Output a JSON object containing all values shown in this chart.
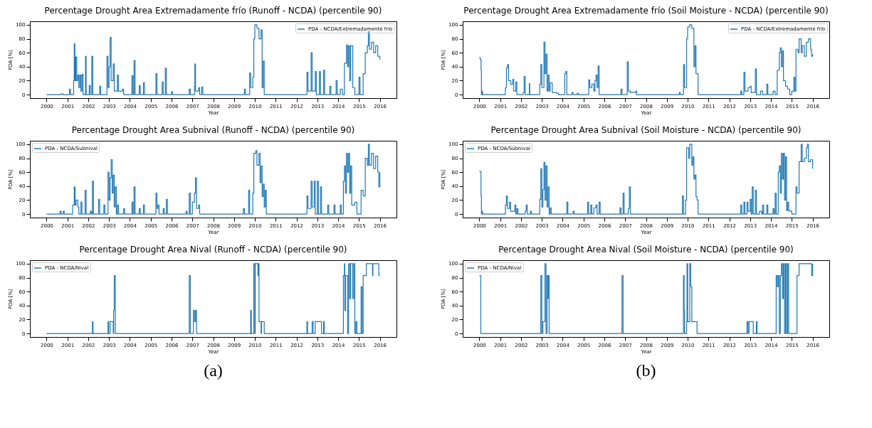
{
  "chart_data": [
    {
      "type": "step",
      "title": "Percentage Drought Area Extremadamente frío (Runoff - NCDA) (percentile 90)",
      "xlabel": "Year",
      "ylabel": "PDA [%]",
      "xlim": [
        1999.2,
        2016.8
      ],
      "xticks": [
        2000,
        2001,
        2002,
        2003,
        2004,
        2005,
        2006,
        2007,
        2008,
        2009,
        2010,
        2011,
        2012,
        2013,
        2014,
        2015,
        2016
      ],
      "ylim": [
        -5,
        105
      ],
      "yticks": [
        0,
        20,
        40,
        60,
        80,
        100
      ],
      "grid": false,
      "legend": "top right",
      "series": [
        {
          "name": "PDA - NCDA/Extremadamente frío",
          "color": "#1f77b4",
          "x": [
            2000,
            2000.7,
            2000.8,
            2001.1,
            2001.15,
            2001.3,
            2001.33,
            2001.36,
            2001.4,
            2001.45,
            2001.5,
            2001.55,
            2001.6,
            2001.65,
            2001.7,
            2001.75,
            2001.87,
            2001.9,
            2002.05,
            2002.1,
            2002.17,
            2002.22,
            2002.55,
            2002.6,
            2002.9,
            2002.95,
            2003.0,
            2003.05,
            2003.1,
            2003.2,
            2003.25,
            2003.4,
            2003.45,
            2003.65,
            2003.7,
            2004.1,
            2004.15,
            2004.2,
            2004.25,
            2004.45,
            2004.5,
            2004.65,
            2004.7,
            2005.25,
            2005.3,
            2005.55,
            2005.6,
            2005.7,
            2005.75,
            2006.0,
            2006.05,
            2006.85,
            2006.9,
            2007.1,
            2007.12,
            2007.15,
            2007.3,
            2007.35,
            2007.45,
            2007.5,
            2009.5,
            2009.55,
            2009.75,
            2009.8,
            2009.9,
            2009.95,
            2010.0,
            2010.1,
            2010.2,
            2010.3,
            2010.35,
            2010.4,
            2010.45,
            2012.45,
            2012.5,
            2012.55,
            2012.7,
            2012.75,
            2012.9,
            2012.95,
            2013.1,
            2013.15,
            2013.3,
            2013.35,
            2013.6,
            2013.65,
            2013.9,
            2013.95,
            2014.1,
            2014.2,
            2014.3,
            2014.4,
            2014.45,
            2014.5,
            2014.55,
            2014.6,
            2014.7,
            2014.8,
            2015.0,
            2015.05,
            2015.2,
            2015.3,
            2015.4,
            2015.45,
            2015.5,
            2015.6,
            2015.7,
            2015.8,
            2015.9,
            2016.0
          ],
          "values": [
            0,
            1,
            0,
            8,
            0,
            20,
            73,
            20,
            54,
            20,
            28,
            10,
            28,
            5,
            29,
            0,
            55,
            0,
            13,
            0,
            55,
            0,
            12,
            0,
            55,
            10,
            40,
            82,
            20,
            44,
            5,
            28,
            5,
            8,
            0,
            27,
            0,
            49,
            0,
            13,
            0,
            17,
            0,
            30,
            0,
            18,
            0,
            38,
            0,
            4,
            0,
            8,
            0,
            12,
            44,
            5,
            10,
            0,
            11,
            0,
            8,
            0,
            31,
            10,
            25,
            80,
            100,
            95,
            80,
            93,
            10,
            48,
            0,
            0,
            32,
            5,
            60,
            5,
            33,
            0,
            33,
            0,
            35,
            0,
            12,
            0,
            20,
            0,
            8,
            0,
            45,
            71,
            40,
            70,
            20,
            70,
            10,
            0,
            25,
            0,
            30,
            60,
            70,
            90,
            65,
            75,
            60,
            70,
            55,
            50
          ]
        }
      ]
    },
    {
      "type": "step",
      "title": "Percentage Drought Area Extremadamente frío (Soil Moisture - NCDA) (percentile 90)",
      "xlabel": "Year",
      "ylabel": "PDA [%]",
      "xlim": [
        1999.2,
        2016.8
      ],
      "xticks": [
        2000,
        2001,
        2002,
        2003,
        2004,
        2005,
        2006,
        2007,
        2008,
        2009,
        2010,
        2011,
        2012,
        2013,
        2014,
        2015,
        2016
      ],
      "ylim": [
        -5,
        105
      ],
      "yticks": [
        0,
        20,
        40,
        60,
        80,
        100
      ],
      "grid": false,
      "legend": "top right",
      "series": [
        {
          "name": "PDA - NCDA/Extremadamente frío",
          "color": "#1f77b4",
          "x": [
            2000,
            2000.05,
            2000.08,
            2000.1,
            2000.12,
            2000.15,
            2001.25,
            2001.3,
            2001.35,
            2001.4,
            2001.5,
            2001.6,
            2001.65,
            2001.75,
            2001.8,
            2002.1,
            2002.15,
            2002.2,
            2002.4,
            2002.42,
            2002.9,
            2002.95,
            2003.0,
            2003.1,
            2003.15,
            2003.2,
            2003.25,
            2003.3,
            2003.35,
            2003.4,
            2003.5,
            2003.7,
            2003.8,
            2004.1,
            2004.15,
            2004.2,
            2004.45,
            2004.5,
            2004.7,
            2004.75,
            2005.25,
            2005.3,
            2005.4,
            2005.5,
            2005.55,
            2005.6,
            2005.65,
            2005.7,
            2005.75,
            2006.8,
            2006.85,
            2007.1,
            2007.15,
            2007.25,
            2007.5,
            2007.55,
            2009.6,
            2009.65,
            2009.8,
            2009.85,
            2009.95,
            2010.0,
            2010.1,
            2010.2,
            2010.3,
            2010.35,
            2010.4,
            2010.5,
            2012.5,
            2012.55,
            2012.6,
            2012.7,
            2012.75,
            2012.9,
            2013.0,
            2013.05,
            2013.25,
            2013.3,
            2013.5,
            2013.6,
            2013.8,
            2013.85,
            2014.1,
            2014.2,
            2014.3,
            2014.4,
            2014.45,
            2014.5,
            2014.55,
            2014.6,
            2014.7,
            2014.8,
            2014.9,
            2015.0,
            2015.1,
            2015.15,
            2015.2,
            2015.3,
            2015.35,
            2015.45,
            2015.5,
            2015.6,
            2015.7,
            2015.8,
            2015.9,
            2015.95,
            2016.0
          ],
          "values": [
            53,
            50,
            35,
            0,
            5,
            0,
            10,
            38,
            43,
            20,
            15,
            22,
            5,
            18,
            0,
            3,
            26,
            0,
            16,
            0,
            15,
            43,
            10,
            75,
            30,
            58,
            5,
            28,
            5,
            17,
            3,
            2,
            0,
            30,
            33,
            0,
            3,
            0,
            2,
            0,
            21,
            10,
            15,
            5,
            20,
            28,
            10,
            41,
            0,
            8,
            0,
            47,
            5,
            3,
            5,
            0,
            3,
            0,
            43,
            10,
            80,
            97,
            100,
            95,
            40,
            70,
            30,
            0,
            0,
            5,
            0,
            32,
            5,
            10,
            12,
            3,
            37,
            0,
            5,
            0,
            15,
            0,
            5,
            0,
            35,
            60,
            67,
            40,
            63,
            20,
            12,
            8,
            0,
            5,
            25,
            5,
            65,
            60,
            80,
            60,
            70,
            55,
            75,
            80,
            65,
            55,
            58
          ]
        }
      ]
    },
    {
      "type": "step",
      "title": "Percentage Drought Area Subnival (Runoff - NCDA) (percentile 90)",
      "xlabel": "Year",
      "ylabel": "PDA [%]",
      "xlim": [
        1999.2,
        2016.8
      ],
      "xticks": [
        2000,
        2001,
        2002,
        2003,
        2004,
        2005,
        2006,
        2007,
        2008,
        2009,
        2010,
        2011,
        2012,
        2013,
        2014,
        2015,
        2016
      ],
      "ylim": [
        -5,
        105
      ],
      "yticks": [
        0,
        20,
        40,
        60,
        80,
        100
      ],
      "grid": false,
      "legend": "top left",
      "series": [
        {
          "name": "PDA - NCDA/Subnival",
          "color": "#1f77b4",
          "x": [
            2000,
            2000.65,
            2000.7,
            2000.8,
            2000.85,
            2001.25,
            2001.33,
            2001.37,
            2001.42,
            2001.5,
            2001.55,
            2001.65,
            2001.7,
            2001.85,
            2001.9,
            2002.1,
            2002.15,
            2002.2,
            2002.25,
            2002.5,
            2002.55,
            2002.75,
            2002.8,
            2002.95,
            2003.0,
            2003.05,
            2003.1,
            2003.15,
            2003.2,
            2003.25,
            2003.3,
            2003.35,
            2003.4,
            2003.45,
            2003.7,
            2003.75,
            2004.1,
            2004.15,
            2004.2,
            2004.25,
            2004.45,
            2004.5,
            2004.65,
            2004.7,
            2005.25,
            2005.3,
            2005.35,
            2005.4,
            2005.6,
            2005.65,
            2005.75,
            2005.8,
            2006.7,
            2006.75,
            2006.85,
            2006.9,
            2007.0,
            2007.1,
            2007.15,
            2007.2,
            2007.3,
            2007.35,
            2009.45,
            2009.5,
            2009.7,
            2009.75,
            2009.9,
            2009.95,
            2010.05,
            2010.1,
            2010.2,
            2010.25,
            2010.3,
            2010.35,
            2010.4,
            2010.45,
            2010.5,
            2010.55,
            2012.45,
            2012.5,
            2012.55,
            2012.7,
            2012.75,
            2012.85,
            2012.9,
            2013.0,
            2013.05,
            2013.15,
            2013.2,
            2013.5,
            2013.55,
            2013.8,
            2013.85,
            2014.1,
            2014.15,
            2014.25,
            2014.3,
            2014.35,
            2014.4,
            2014.45,
            2014.5,
            2014.55,
            2014.6,
            2014.65,
            2014.8,
            2014.9,
            2015.0,
            2015.1,
            2015.2,
            2015.3,
            2015.4,
            2015.45,
            2015.5,
            2015.6,
            2015.7,
            2015.8,
            2015.9,
            2015.95,
            2016.0
          ],
          "values": [
            0,
            4,
            0,
            4,
            0,
            13,
            39,
            13,
            20,
            10,
            0,
            17,
            0,
            34,
            0,
            4,
            0,
            47,
            0,
            21,
            0,
            13,
            0,
            60,
            20,
            52,
            78,
            30,
            56,
            10,
            39,
            0,
            13,
            0,
            8,
            0,
            17,
            0,
            39,
            0,
            8,
            0,
            13,
            0,
            30,
            8,
            13,
            0,
            8,
            0,
            21,
            0,
            4,
            0,
            30,
            0,
            17,
            30,
            52,
            8,
            13,
            0,
            8,
            0,
            34,
            0,
            30,
            87,
            91,
            70,
            87,
            45,
            69,
            25,
            43,
            10,
            34,
            0,
            0,
            26,
            8,
            47,
            10,
            47,
            0,
            47,
            0,
            39,
            0,
            13,
            0,
            13,
            0,
            13,
            0,
            47,
            69,
            30,
            87,
            60,
            87,
            30,
            69,
            13,
            17,
            0,
            0,
            34,
            26,
            80,
            70,
            100,
            70,
            87,
            65,
            83,
            60,
            39,
            60
          ]
        }
      ]
    },
    {
      "type": "step",
      "title": "Percentage Drought Area Subnival (Soil Moisture - NCDA) (percentile 90)",
      "xlabel": "Year",
      "ylabel": "PDA [%]",
      "xlim": [
        1999.2,
        2016.8
      ],
      "xticks": [
        2000,
        2001,
        2002,
        2003,
        2004,
        2005,
        2006,
        2007,
        2008,
        2009,
        2010,
        2011,
        2012,
        2013,
        2014,
        2015,
        2016
      ],
      "ylim": [
        -5,
        105
      ],
      "yticks": [
        0,
        20,
        40,
        60,
        80,
        100
      ],
      "grid": false,
      "legend": "top left",
      "series": [
        {
          "name": "PDA - NCDA/Subnival",
          "color": "#1f77b4",
          "x": [
            2000,
            2000.05,
            2000.08,
            2000.1,
            2000.12,
            2000.15,
            2001.25,
            2001.3,
            2001.35,
            2001.45,
            2001.5,
            2001.6,
            2001.7,
            2001.75,
            2001.8,
            2001.85,
            2002.2,
            2002.25,
            2002.3,
            2002.45,
            2002.5,
            2002.9,
            2002.95,
            2003.0,
            2003.05,
            2003.1,
            2003.15,
            2003.2,
            2003.25,
            2003.3,
            2003.35,
            2003.4,
            2003.45,
            2004.2,
            2004.25,
            2004.5,
            2004.55,
            2005.2,
            2005.25,
            2005.35,
            2005.4,
            2005.5,
            2005.6,
            2005.65,
            2005.75,
            2005.8,
            2006.75,
            2006.8,
            2006.9,
            2006.95,
            2007.15,
            2007.2,
            2007.25,
            2009.75,
            2009.8,
            2009.9,
            2009.95,
            2010.05,
            2010.1,
            2010.2,
            2010.25,
            2010.3,
            2010.35,
            2010.4,
            2010.45,
            2010.5,
            2012.5,
            2012.55,
            2012.6,
            2012.7,
            2012.75,
            2012.85,
            2012.9,
            2013.0,
            2013.05,
            2013.1,
            2013.15,
            2013.25,
            2013.3,
            2013.45,
            2013.55,
            2013.6,
            2013.65,
            2013.8,
            2013.85,
            2014.1,
            2014.15,
            2014.2,
            2014.25,
            2014.35,
            2014.4,
            2014.45,
            2014.5,
            2014.55,
            2014.6,
            2014.65,
            2014.7,
            2014.75,
            2014.8,
            2014.85,
            2014.9,
            2015.0,
            2015.15,
            2015.2,
            2015.25,
            2015.35,
            2015.45,
            2015.5,
            2015.6,
            2015.7,
            2015.75,
            2015.8,
            2015.9,
            2016.0
          ],
          "values": [
            61,
            61,
            26,
            0,
            4,
            0,
            13,
            26,
            8,
            17,
            4,
            4,
            13,
            0,
            8,
            0,
            4,
            13,
            0,
            4,
            0,
            21,
            65,
            10,
            35,
            74,
            20,
            69,
            10,
            39,
            0,
            9,
            0,
            17,
            0,
            4,
            0,
            17,
            0,
            13,
            0,
            9,
            13,
            0,
            17,
            0,
            9,
            0,
            30,
            0,
            8,
            39,
            0,
            26,
            0,
            20,
            95,
            80,
            100,
            70,
            82,
            50,
            56,
            25,
            20,
            0,
            0,
            13,
            0,
            17,
            0,
            17,
            4,
            21,
            0,
            39,
            0,
            34,
            0,
            4,
            0,
            13,
            0,
            13,
            0,
            8,
            0,
            30,
            0,
            60,
            69,
            30,
            87,
            50,
            87,
            20,
            82,
            5,
            17,
            5,
            4,
            0,
            0,
            39,
            30,
            75,
            100,
            75,
            80,
            95,
            100,
            75,
            78,
            65
          ]
        }
      ]
    },
    {
      "type": "step",
      "title": "Percentage Drought Area Nival (Runoff - NCDA) (percentile 90)",
      "xlabel": "Year",
      "ylabel": "PDA [%]",
      "xlim": [
        1999.2,
        2016.8
      ],
      "xticks": [
        2000,
        2001,
        2002,
        2003,
        2004,
        2005,
        2006,
        2007,
        2008,
        2009,
        2010,
        2011,
        2012,
        2013,
        2014,
        2015,
        2016
      ],
      "ylim": [
        -5,
        105
      ],
      "yticks": [
        0,
        20,
        40,
        60,
        80,
        100
      ],
      "grid": false,
      "legend": "top left",
      "annotations": [
        "(a)"
      ],
      "series": [
        {
          "name": "PDA - NCDA/Nival",
          "color": "#1f77b4",
          "x": [
            2000,
            2002.2,
            2002.23,
            2002.95,
            2002.98,
            2003.05,
            2003.2,
            2003.22,
            2003.25,
            2003.3,
            2006.85,
            2006.9,
            2007.05,
            2007.1,
            2007.15,
            2007.2,
            2009.8,
            2009.83,
            2009.95,
            2010.0,
            2010.02,
            2010.15,
            2010.17,
            2010.2,
            2010.3,
            2010.32,
            2010.45,
            2012.5,
            2012.53,
            2012.75,
            2012.8,
            2012.9,
            2013.2,
            2013.3,
            2013.33,
            2014.25,
            2014.3,
            2014.32,
            2014.35,
            2014.45,
            2014.5,
            2014.55,
            2014.6,
            2014.7,
            2014.75,
            2014.8,
            2014.85,
            2014.9,
            2015.1,
            2015.15,
            2015.2,
            2015.35,
            2015.65,
            2015.67,
            2015.95,
            2016.0
          ],
          "values": [
            0,
            17,
            0,
            17,
            0,
            17,
            0,
            33,
            83,
            0,
            83,
            0,
            33,
            17,
            33,
            0,
            33,
            0,
            100,
            0,
            100,
            83,
            100,
            17,
            0,
            17,
            0,
            17,
            0,
            17,
            0,
            17,
            0,
            17,
            0,
            83,
            100,
            33,
            83,
            0,
            100,
            50,
            100,
            50,
            100,
            0,
            17,
            0,
            67,
            0,
            83,
            100,
            83,
            100,
            83,
            83
          ]
        }
      ]
    },
    {
      "type": "step",
      "title": "Percentage Drought Area Nival (Soil Moisture - NCDA) (percentile 90)",
      "xlabel": "Year",
      "ylabel": "PDA [%]",
      "xlim": [
        1999.2,
        2016.8
      ],
      "xticks": [
        2000,
        2001,
        2002,
        2003,
        2004,
        2005,
        2006,
        2007,
        2008,
        2009,
        2010,
        2011,
        2012,
        2013,
        2014,
        2015,
        2016
      ],
      "ylim": [
        -5,
        105
      ],
      "yticks": [
        0,
        20,
        40,
        60,
        80,
        100
      ],
      "grid": false,
      "legend": "top left",
      "annotations": [
        "(b)"
      ],
      "series": [
        {
          "name": "PDA - NCDA/Nival",
          "color": "#1f77b4",
          "x": [
            2000,
            2000.07,
            2002.95,
            2003.0,
            2003.05,
            2003.15,
            2003.2,
            2003.25,
            2003.3,
            2003.33,
            2003.35,
            2006.85,
            2006.9,
            2009.8,
            2009.83,
            2009.85,
            2009.95,
            2009.97,
            2010.0,
            2010.1,
            2010.15,
            2010.2,
            2010.45,
            2012.85,
            2012.9,
            2012.95,
            2013.15,
            2013.3,
            2013.33,
            2014.25,
            2014.3,
            2014.35,
            2014.4,
            2014.45,
            2014.5,
            2014.55,
            2014.6,
            2014.65,
            2014.7,
            2014.75,
            2014.8,
            2014.85,
            2015.25,
            2015.35,
            2015.95,
            2016.0
          ],
          "values": [
            83,
            0,
            83,
            0,
            17,
            100,
            0,
            83,
            50,
            83,
            0,
            83,
            0,
            83,
            33,
            0,
            17,
            100,
            17,
            100,
            67,
            17,
            0,
            17,
            0,
            17,
            0,
            17,
            0,
            83,
            67,
            83,
            0,
            83,
            100,
            50,
            100,
            0,
            100,
            0,
            100,
            0,
            83,
            100,
            83,
            100
          ]
        }
      ]
    }
  ]
}
